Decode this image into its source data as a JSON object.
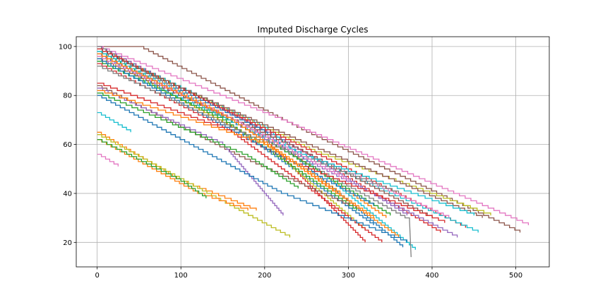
{
  "chart_data": {
    "type": "line",
    "title": "Imputed Discharge Cycles",
    "xlabel": "",
    "ylabel": "",
    "xlim": [
      -25,
      540
    ],
    "ylim": [
      10,
      104
    ],
    "xticks": [
      0,
      100,
      200,
      300,
      400,
      500
    ],
    "yticks": [
      20,
      40,
      60,
      80,
      100
    ],
    "grid": true,
    "step_lines": true,
    "palette": [
      "#1f77b4",
      "#ff7f0e",
      "#2ca02c",
      "#d62728",
      "#9467bd",
      "#8c564b",
      "#e377c2",
      "#7f7f7f",
      "#bcbd22",
      "#17becf"
    ],
    "series": [
      {
        "color": "#ff7f0e",
        "points": [
          [
            0,
            100
          ],
          [
            215,
            60
          ],
          [
            345,
            30
          ]
        ]
      },
      {
        "color": "#d62728",
        "points": [
          [
            0,
            100
          ],
          [
            180,
            69
          ],
          [
            320,
            20
          ]
        ]
      },
      {
        "color": "#d62728",
        "points": [
          [
            0,
            100
          ],
          [
            230,
            60
          ],
          [
            410,
            24
          ]
        ]
      },
      {
        "color": "#8c564b",
        "points": [
          [
            0,
            100
          ],
          [
            50,
            100
          ],
          [
            250,
            65
          ],
          [
            505,
            24
          ]
        ]
      },
      {
        "color": "#e377c2",
        "points": [
          [
            0,
            100
          ],
          [
            220,
            70
          ],
          [
            515,
            27
          ]
        ]
      },
      {
        "color": "#9467bd",
        "points": [
          [
            0,
            100
          ],
          [
            220,
            62
          ],
          [
            370,
            31
          ]
        ]
      },
      {
        "color": "#1f77b4",
        "points": [
          [
            0,
            99
          ],
          [
            200,
            65
          ],
          [
            365,
            18
          ]
        ]
      },
      {
        "color": "#bcbd22",
        "points": [
          [
            0,
            99
          ],
          [
            260,
            57
          ],
          [
            470,
            31
          ]
        ]
      },
      {
        "color": "#17becf",
        "points": [
          [
            0,
            99
          ],
          [
            200,
            67
          ],
          [
            380,
            17
          ]
        ]
      },
      {
        "color": "#7f7f7f",
        "points": [
          [
            0,
            100
          ],
          [
            250,
            52
          ],
          [
            373,
            29
          ],
          [
            375,
            14
          ]
        ]
      },
      {
        "color": "#d62728",
        "points": [
          [
            0,
            99
          ],
          [
            280,
            53
          ],
          [
            440,
            26
          ]
        ]
      },
      {
        "color": "#8c564b",
        "points": [
          [
            0,
            98
          ],
          [
            250,
            60
          ],
          [
            460,
            30
          ]
        ]
      },
      {
        "color": "#2ca02c",
        "points": [
          [
            0,
            98
          ],
          [
            200,
            62
          ],
          [
            350,
            31
          ]
        ]
      },
      {
        "color": "#17becf",
        "points": [
          [
            0,
            98
          ],
          [
            230,
            58
          ],
          [
            455,
            24
          ]
        ]
      },
      {
        "color": "#1f77b4",
        "points": [
          [
            0,
            97
          ],
          [
            170,
            65
          ],
          [
            330,
            27
          ]
        ]
      },
      {
        "color": "#e377c2",
        "points": [
          [
            0,
            97
          ],
          [
            210,
            62
          ],
          [
            420,
            30
          ]
        ]
      },
      {
        "color": "#ff7f0e",
        "points": [
          [
            0,
            96
          ],
          [
            210,
            58
          ],
          [
            360,
            22
          ]
        ]
      },
      {
        "color": "#9467bd",
        "points": [
          [
            0,
            97
          ],
          [
            240,
            55
          ],
          [
            430,
            22
          ]
        ]
      },
      {
        "color": "#bcbd22",
        "points": [
          [
            0,
            96
          ],
          [
            200,
            60
          ],
          [
            320,
            25
          ]
        ]
      },
      {
        "color": "#8c564b",
        "points": [
          [
            0,
            95
          ],
          [
            240,
            58
          ],
          [
            400,
            30
          ]
        ]
      },
      {
        "color": "#17becf",
        "points": [
          [
            0,
            94
          ],
          [
            250,
            55
          ],
          [
            450,
            31
          ]
        ]
      },
      {
        "color": "#2ca02c",
        "points": [
          [
            0,
            94
          ],
          [
            150,
            70
          ],
          [
            310,
            33
          ]
        ]
      },
      {
        "color": "#d62728",
        "points": [
          [
            0,
            93
          ],
          [
            230,
            53
          ],
          [
            415,
            28
          ]
        ]
      },
      {
        "color": "#1f77b4",
        "points": [
          [
            0,
            95
          ],
          [
            180,
            62
          ],
          [
            330,
            35
          ]
        ]
      },
      {
        "color": "#7f7f7f",
        "points": [
          [
            0,
            92
          ],
          [
            190,
            62
          ],
          [
            360,
            40
          ]
        ]
      },
      {
        "color": "#e377c2",
        "points": [
          [
            0,
            96
          ],
          [
            150,
            72
          ],
          [
            300,
            45
          ]
        ]
      },
      {
        "color": "#ff7f0e",
        "points": [
          [
            0,
            97
          ],
          [
            160,
            70
          ],
          [
            290,
            40
          ]
        ]
      },
      {
        "color": "#d62728",
        "points": [
          [
            0,
            85
          ],
          [
            160,
            65
          ],
          [
            340,
            20
          ]
        ]
      },
      {
        "color": "#8c564b",
        "points": [
          [
            0,
            84
          ],
          [
            170,
            55
          ],
          [
            300,
            35
          ]
        ]
      },
      {
        "color": "#9467bd",
        "points": [
          [
            0,
            83
          ],
          [
            150,
            60
          ],
          [
            222,
            31
          ]
        ]
      },
      {
        "color": "#ff7f0e",
        "points": [
          [
            0,
            82
          ],
          [
            200,
            60
          ],
          [
            330,
            30
          ]
        ]
      },
      {
        "color": "#2ca02c",
        "points": [
          [
            0,
            81
          ],
          [
            180,
            55
          ],
          [
            240,
            42
          ]
        ]
      },
      {
        "color": "#1f77b4",
        "points": [
          [
            0,
            80
          ],
          [
            220,
            40
          ],
          [
            370,
            20
          ]
        ]
      },
      {
        "color": "#17becf",
        "points": [
          [
            0,
            73
          ],
          [
            40,
            65
          ]
        ]
      },
      {
        "color": "#ff7f0e",
        "points": [
          [
            0,
            65
          ],
          [
            100,
            45
          ],
          [
            190,
            33
          ]
        ]
      },
      {
        "color": "#bcbd22",
        "points": [
          [
            0,
            64
          ],
          [
            120,
            42
          ],
          [
            230,
            22
          ]
        ]
      },
      {
        "color": "#ff7f0e",
        "points": [
          [
            0,
            62
          ],
          [
            120,
            40
          ],
          [
            180,
            33
          ]
        ]
      },
      {
        "color": "#2ca02c",
        "points": [
          [
            0,
            62
          ],
          [
            100,
            45
          ],
          [
            130,
            38
          ]
        ]
      },
      {
        "color": "#e377c2",
        "points": [
          [
            0,
            56
          ],
          [
            25,
            51
          ]
        ]
      }
    ]
  }
}
